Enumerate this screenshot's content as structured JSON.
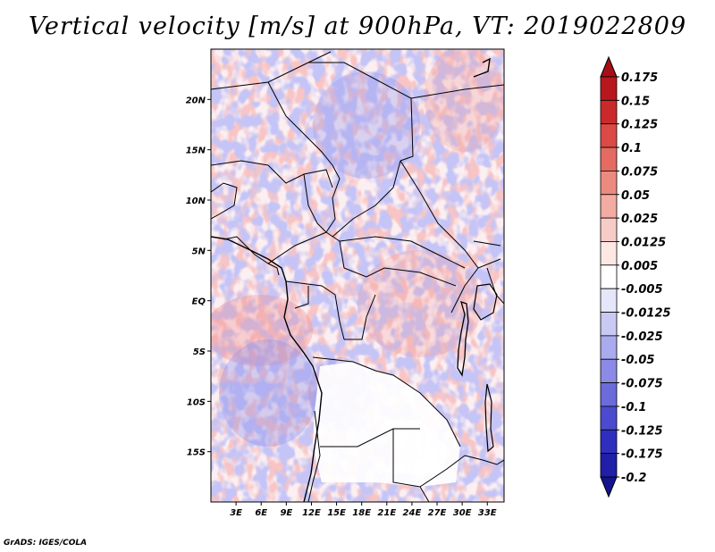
{
  "title": "Vertical velocity [m/s] at 900hPa, VT: 2019022809",
  "footer": "GrADS: IGES/COLA",
  "map": {
    "lon_range": [
      0,
      35
    ],
    "lat_range": [
      -20,
      25
    ],
    "x_ticks": [
      "3E",
      "6E",
      "9E",
      "12E",
      "15E",
      "18E",
      "21E",
      "24E",
      "27E",
      "30E",
      "33E"
    ],
    "y_ticks": [
      "20N",
      "15N",
      "10N",
      "5N",
      "EQ",
      "5S",
      "10S",
      "15S"
    ]
  },
  "colorbar": {
    "levels": [
      "0.175",
      "0.15",
      "0.125",
      "0.1",
      "0.075",
      "0.05",
      "0.025",
      "0.0125",
      "0.005",
      "-0.005",
      "-0.0125",
      "-0.025",
      "-0.05",
      "-0.075",
      "-0.1",
      "-0.125",
      "-0.175",
      "-0.2"
    ],
    "colors": [
      "#a50f15",
      "#b8181d",
      "#cb2a2a",
      "#db4a45",
      "#e46a62",
      "#ec8a80",
      "#f3aba2",
      "#f8ccc6",
      "#fde8e4",
      "#ffffff",
      "#e6e6fb",
      "#c9c9f4",
      "#aaaaee",
      "#8b8be7",
      "#6b6bdc",
      "#4b4bd0",
      "#2f2fbf",
      "#1f1fa8",
      "#14148f"
    ]
  }
}
